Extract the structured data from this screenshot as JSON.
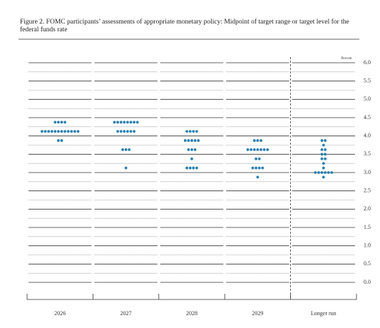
{
  "chart_data": {
    "type": "dot",
    "title": "Figure 2. FOMC participants’ assessments of appropriate monetary policy: Midpoint of target range or target level for the federal funds rate",
    "y_label": "Percent",
    "categories": [
      "2026",
      "2027",
      "2028",
      "2029",
      "Longer run"
    ],
    "points": [
      [
        {
          "rate": 4.375,
          "count": 4
        },
        {
          "rate": 4.125,
          "count": 12
        },
        {
          "rate": 3.875,
          "count": 2
        }
      ],
      [
        {
          "rate": 4.375,
          "count": 8
        },
        {
          "rate": 4.125,
          "count": 6
        },
        {
          "rate": 3.625,
          "count": 3
        },
        {
          "rate": 3.125,
          "count": 1
        }
      ],
      [
        {
          "rate": 4.125,
          "count": 4
        },
        {
          "rate": 3.875,
          "count": 5
        },
        {
          "rate": 3.625,
          "count": 3
        },
        {
          "rate": 3.375,
          "count": 1
        },
        {
          "rate": 3.125,
          "count": 4
        }
      ],
      [
        {
          "rate": 3.875,
          "count": 3
        },
        {
          "rate": 3.625,
          "count": 7
        },
        {
          "rate": 3.375,
          "count": 2
        },
        {
          "rate": 3.125,
          "count": 4
        },
        {
          "rate": 2.875,
          "count": 1
        }
      ],
      [
        {
          "rate": 3.875,
          "count": 2
        },
        {
          "rate": 3.75,
          "count": 1
        },
        {
          "rate": 3.625,
          "count": 2
        },
        {
          "rate": 3.5,
          "count": 2
        },
        {
          "rate": 3.375,
          "count": 2
        },
        {
          "rate": 3.25,
          "count": 1
        },
        {
          "rate": 3.125,
          "count": 1
        },
        {
          "rate": 3.0,
          "count": 6
        },
        {
          "rate": 2.875,
          "count": 1
        }
      ]
    ],
    "color": "#2a7fb0",
    "ylim": [
      0,
      6
    ],
    "yticks": [
      {
        "value": 0,
        "label": "0.0"
      },
      0.5,
      {
        "value": 1,
        "label": "1.0"
      },
      1.5,
      {
        "value": 2,
        "label": "2.0"
      },
      2.5,
      {
        "value": 3,
        "label": "3.0"
      },
      3.5,
      {
        "value": 4,
        "label": "4.0"
      },
      4.5,
      {
        "value": 5,
        "label": "5.0"
      },
      5.5,
      {
        "value": 6,
        "label": "6.0"
      }
    ],
    "minor_yticks": [
      0.25,
      0.75,
      1.25,
      1.75,
      2.25,
      2.75,
      3.25,
      3.75,
      4.25,
      4.75,
      5.25,
      5.75
    ]
  }
}
